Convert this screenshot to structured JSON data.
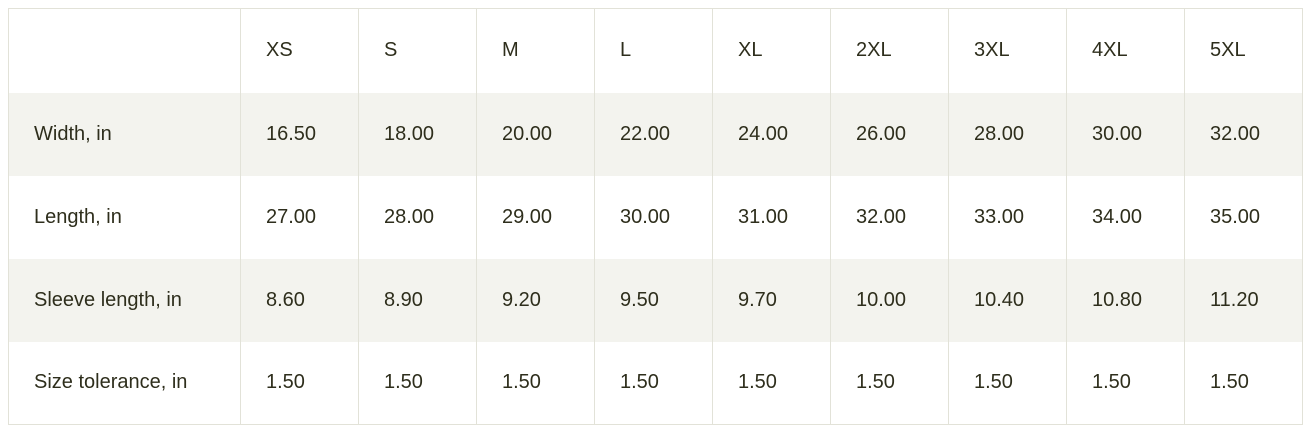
{
  "table": {
    "columns": [
      "",
      "XS",
      "S",
      "M",
      "L",
      "XL",
      "2XL",
      "3XL",
      "4XL",
      "5XL"
    ],
    "rows": [
      {
        "label": "Width, in",
        "values": [
          "16.50",
          "18.00",
          "20.00",
          "22.00",
          "24.00",
          "26.00",
          "28.00",
          "30.00",
          "32.00"
        ]
      },
      {
        "label": "Length, in",
        "values": [
          "27.00",
          "28.00",
          "29.00",
          "30.00",
          "31.00",
          "32.00",
          "33.00",
          "34.00",
          "35.00"
        ]
      },
      {
        "label": "Sleeve length, in",
        "values": [
          "8.60",
          "8.90",
          "9.20",
          "9.50",
          "9.70",
          "10.00",
          "10.40",
          "10.80",
          "11.20"
        ]
      },
      {
        "label": "Size tolerance, in",
        "values": [
          "1.50",
          "1.50",
          "1.50",
          "1.50",
          "1.50",
          "1.50",
          "1.50",
          "1.50",
          "1.50"
        ]
      }
    ]
  },
  "colors": {
    "text": "#2e2e1c",
    "stripe": "#f3f3ee",
    "border": "#e2e2d8"
  }
}
